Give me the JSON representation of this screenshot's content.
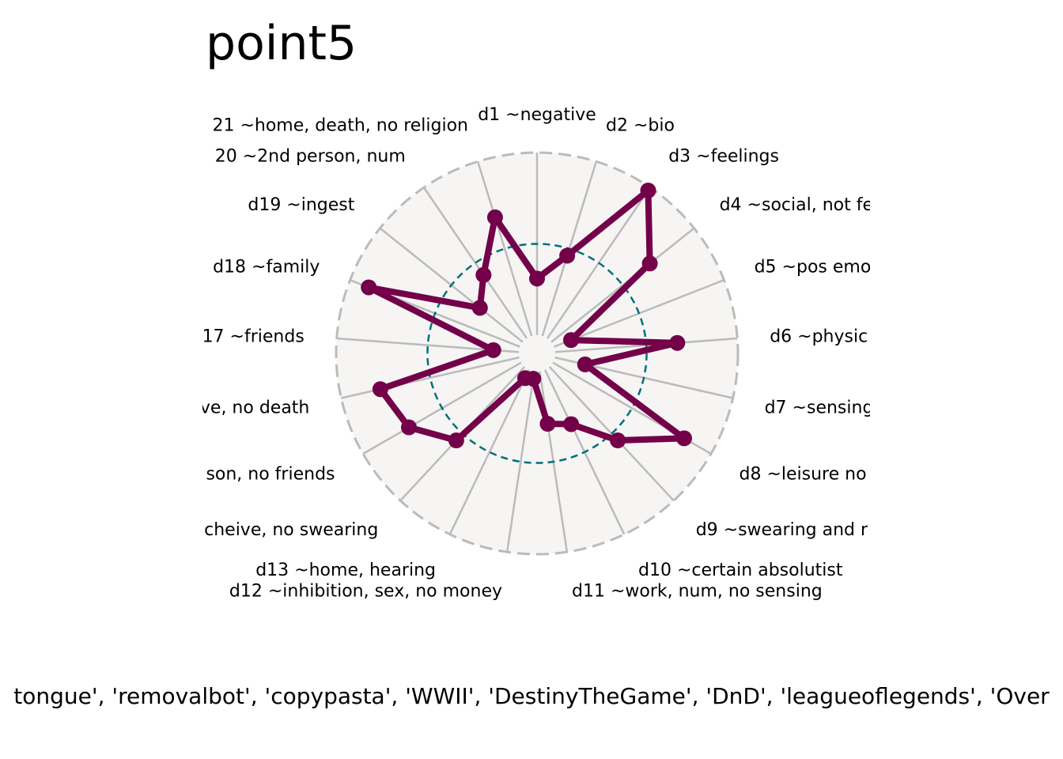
{
  "chart_data": {
    "type": "radar",
    "title": "point5",
    "caption": "tongue', 'removalbot', 'copypasta', 'WWII', 'DestinyTheGame', 'DnD', 'leagueoflegends', 'Over",
    "categories": [
      "d1 ~negative",
      "d2 ~bio",
      "d3 ~feelings",
      "d4 ~social, not fe",
      "d5 ~pos emo",
      "d6 ~physic",
      "d7 ~sensing",
      "d8 ~leisure no",
      "d9 ~swearing and r",
      "d10 ~certain absolutist",
      "d11 ~work, num, no sensing",
      "d12 ~inhibition, sex, no money",
      "d13 ~home, hearing",
      "cheive, no swearing",
      "son, no friends",
      "ve, no death",
      "17 ~friends",
      "d18 ~family",
      "d19 ~ingest",
      "20 ~2nd person, num",
      "21 ~home, death, no religion"
    ],
    "values": [
      0.31,
      0.46,
      0.98,
      0.69,
      0.1,
      0.67,
      0.17,
      0.83,
      0.55,
      0.33,
      0.29,
      0.04,
      0.05,
      0.55,
      0.71,
      0.78,
      0.14,
      0.89,
      0.3,
      0.42,
      0.68
    ],
    "rlim": [
      -0.1,
      1.0
    ],
    "reference_ring": 0.5,
    "series_color": "#730049",
    "reference_color": "#00707a",
    "spoke_color": "#bbbbbb",
    "background_color": "#f6f5f4"
  }
}
